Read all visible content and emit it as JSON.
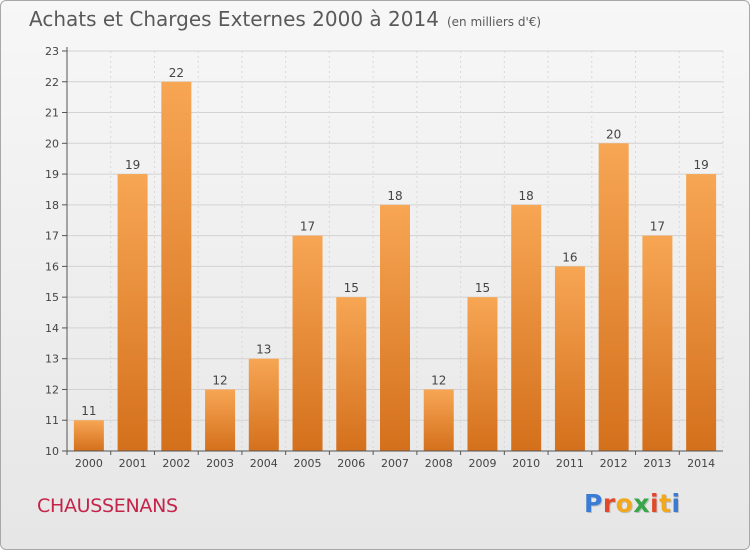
{
  "header": {
    "title": "Achats et Charges Externes 2000 à 2014",
    "unit": "(en milliers d'€)"
  },
  "footer": {
    "commune": "CHAUSSENANS",
    "logo_letters": [
      "P",
      "r",
      "o",
      "x",
      "i",
      "t",
      "i"
    ]
  },
  "colors": {
    "bar_top": "#f7a654",
    "bar_bottom": "#d4701c",
    "commune": "#c4244a",
    "logo": [
      "#3a7bd5",
      "#e04a2b",
      "#f2a81d",
      "#3aa54a",
      "#e04a2b",
      "#f2a81d",
      "#3a7bd5"
    ]
  },
  "chart_data": {
    "type": "bar",
    "categories": [
      "2000",
      "2001",
      "2002",
      "2003",
      "2004",
      "2005",
      "2006",
      "2007",
      "2008",
      "2009",
      "2010",
      "2011",
      "2012",
      "2013",
      "2014"
    ],
    "values": [
      11,
      19,
      22,
      12,
      13,
      17,
      15,
      18,
      12,
      15,
      18,
      16,
      20,
      17,
      19
    ],
    "data_labels": [
      "11",
      "19",
      "22",
      "12",
      "13",
      "17",
      "15",
      "18",
      "12",
      "15",
      "18",
      "16",
      "20",
      "17",
      "19"
    ],
    "y_ticks": [
      "10",
      "11",
      "12",
      "13",
      "14",
      "15",
      "16",
      "17",
      "18",
      "19",
      "20",
      "21",
      "22",
      "23"
    ],
    "ylim": [
      10,
      23
    ],
    "grid": true
  }
}
